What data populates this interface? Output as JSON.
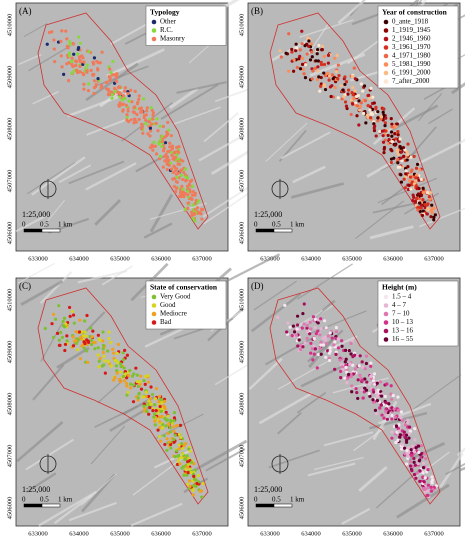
{
  "panels": [
    {
      "label": "(A)",
      "legend": {
        "title": "Typology",
        "items": [
          {
            "label": "Other",
            "color": "#1a2a6c"
          },
          {
            "label": "R.C.",
            "color": "#86d83c"
          },
          {
            "label": "Masonry",
            "color": "#f07a5a"
          }
        ]
      },
      "x_labels": [
        "633000",
        "634000",
        "635000",
        "636000",
        "637000"
      ],
      "y_labels": [
        "4510000",
        "4509000",
        "4508000",
        "4507000",
        "4506000"
      ],
      "scale": "1:25,000",
      "scale_bar": [
        "0",
        "0.5",
        "1 km"
      ]
    },
    {
      "label": "(B)",
      "legend": {
        "title": "Year of construction",
        "items": [
          {
            "label": "0_ante_1918",
            "color": "#3a0000"
          },
          {
            "label": "1_1919_1945",
            "color": "#8b0000"
          },
          {
            "label": "2_1946_1960",
            "color": "#b2101a"
          },
          {
            "label": "3_1961_1970",
            "color": "#d7301f"
          },
          {
            "label": "4_1971_1980",
            "color": "#ef6548"
          },
          {
            "label": "5_1981_1990",
            "color": "#fc8d59"
          },
          {
            "label": "6_1991_2000",
            "color": "#fdbb84"
          },
          {
            "label": "7_after_2000",
            "color": "#fde6d2"
          }
        ]
      },
      "x_labels": [
        "633000",
        "634000",
        "635000",
        "636000",
        "637000"
      ],
      "y_labels": [
        "4510000",
        "4509000",
        "4508000",
        "4507000",
        "4506000"
      ],
      "scale": "1:25,000",
      "scale_bar": [
        "0",
        "0.5",
        "1 km"
      ]
    },
    {
      "label": "(C)",
      "legend": {
        "title": "State of conservation",
        "items": [
          {
            "label": "Very Good",
            "color": "#7cc130"
          },
          {
            "label": "Good",
            "color": "#d6d41e"
          },
          {
            "label": "Mediocre",
            "color": "#f0a020"
          },
          {
            "label": "Bad",
            "color": "#d81818"
          }
        ]
      },
      "x_labels": [
        "633000",
        "634000",
        "635000",
        "636000",
        "637000"
      ],
      "y_labels": [
        "4510000",
        "4509000",
        "4508000",
        "4507000",
        "4506000"
      ],
      "scale": "1:25,000",
      "scale_bar": [
        "0",
        "0.5",
        "1 km"
      ]
    },
    {
      "label": "(D)",
      "legend": {
        "title": "Height (m)",
        "items": [
          {
            "label": "1.5 – 4",
            "color": "#f6e6f0"
          },
          {
            "label": "4 – 7",
            "color": "#e8b4d4"
          },
          {
            "label": "7 – 10",
            "color": "#de77b0"
          },
          {
            "label": "10 – 13",
            "color": "#d4308a"
          },
          {
            "label": "13 – 16",
            "color": "#a8105e"
          },
          {
            "label": "16 – 55",
            "color": "#6a0035"
          }
        ]
      },
      "x_labels": [
        "633000",
        "634000",
        "635000",
        "636000",
        "637000"
      ],
      "y_labels": [
        "4510000",
        "4509000",
        "4508000",
        "4507000",
        "4506000"
      ],
      "scale": "1:25,000",
      "scale_bar": [
        "0",
        "0.5",
        "1 km"
      ]
    }
  ]
}
